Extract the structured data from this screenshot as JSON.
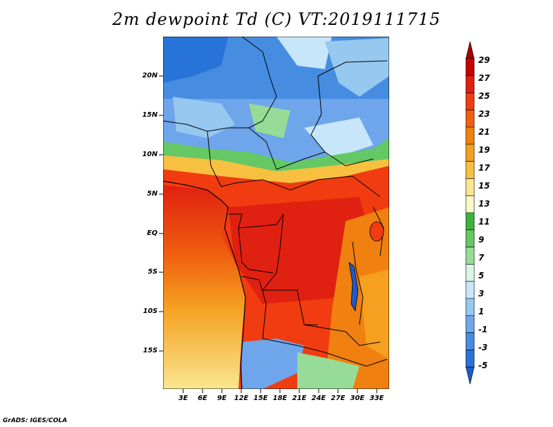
{
  "title": "2m dewpoint Td (C) VT:2019111715",
  "credit": "GrADS: IGES/COLA",
  "lat_labels": [
    "20N",
    "15N",
    "10N",
    "5N",
    "EQ",
    "5S",
    "10S",
    "15S"
  ],
  "lon_labels": [
    "3E",
    "6E",
    "9E",
    "12E",
    "15E",
    "18E",
    "21E",
    "24E",
    "27E",
    "30E",
    "33E"
  ],
  "colorbar": {
    "labels": [
      "29",
      "27",
      "25",
      "23",
      "21",
      "19",
      "17",
      "15",
      "13",
      "11",
      "9",
      "7",
      "5",
      "3",
      "1",
      "-1",
      "-3",
      "-5"
    ],
    "colors": [
      "#a50000",
      "#c80000",
      "#e02010",
      "#f03c10",
      "#f06010",
      "#f08010",
      "#f5a020",
      "#f8c040",
      "#fae690",
      "#f8f8c8",
      "#3cb43c",
      "#64c864",
      "#96dc96",
      "#dcf5e6",
      "#c8e6fa",
      "#96c8f0",
      "#6ea5eb",
      "#468ce1",
      "#2873d7",
      "#1e5ac8"
    ]
  }
}
